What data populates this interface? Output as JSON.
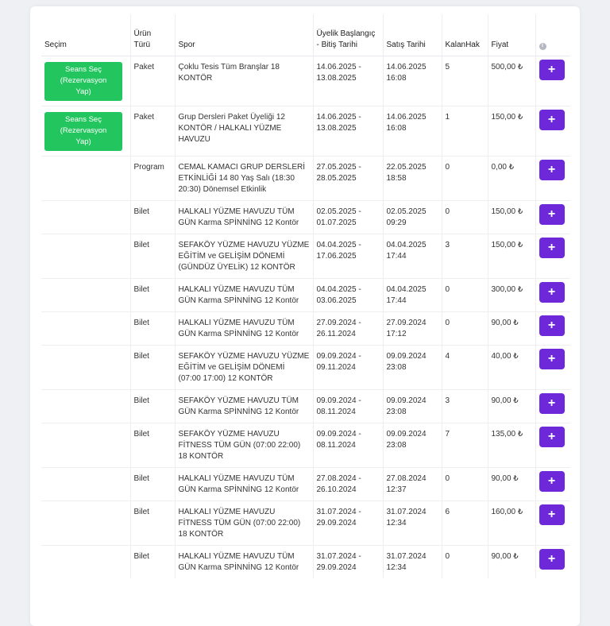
{
  "table": {
    "headers": {
      "secim": "Seçim",
      "urun_turu": "Ürün\nTürü",
      "spor": "Spor",
      "uyelik": "Üyelik Başlangıç\n- Bitiş Tarihi",
      "satis": "Satış Tarihi",
      "kalan": "KalanHak",
      "fiyat": "Fiyat",
      "info_icon": "info-icon"
    },
    "session_button_label": "Seans Seç\n(Rezervasyon\nYap)",
    "add_button_label": "+",
    "rows": [
      {
        "type": "Paket",
        "sport": "Çoklu Tesis Tüm Branşlar 18 KONTÖR",
        "membership": "14.06.2025 -\n13.08.2025",
        "sale": "14.06.2025\n16:08",
        "remaining": "5",
        "price": "500,00 ₺"
      },
      {
        "type": "Paket",
        "sport": "Grup Dersleri Paket Üyeliği 12 KONTÖR / HALKALI YÜZME HAVUZU",
        "membership": "14.06.2025 -\n13.08.2025",
        "sale": "14.06.2025\n16:08",
        "remaining": "1",
        "price": "150,00 ₺"
      },
      {
        "type": "Program",
        "sport": "CEMAL KAMACI GRUP DERSLERİ ETKİNLİĞİ 14 80 Yaş Salı (18:30 20:30) Dönemsel Etkinlik",
        "membership": "27.05.2025 -\n28.05.2025",
        "sale": "22.05.2025\n18:58",
        "remaining": "0",
        "price": "0,00 ₺"
      },
      {
        "type": "Bilet",
        "sport": "HALKALI YÜZME HAVUZU TÜM GÜN Karma SPİNNİNG 12 Kontör",
        "membership": "02.05.2025 -\n01.07.2025",
        "sale": "02.05.2025\n09:29",
        "remaining": "0",
        "price": "150,00 ₺"
      },
      {
        "type": "Bilet",
        "sport": "SEFAKÖY YÜZME HAVUZU YÜZME EĞİTİM ve GELİŞİM DÖNEMİ (GÜNDÜZ ÜYELİK) 12 KONTÖR",
        "membership": "04.04.2025 -\n17.06.2025",
        "sale": "04.04.2025\n17:44",
        "remaining": "3",
        "price": "150,00 ₺"
      },
      {
        "type": "Bilet",
        "sport": "HALKALI YÜZME HAVUZU TÜM GÜN Karma SPİNNİNG 12 Kontör",
        "membership": "04.04.2025 -\n03.06.2025",
        "sale": "04.04.2025\n17:44",
        "remaining": "0",
        "price": "300,00 ₺"
      },
      {
        "type": "Bilet",
        "sport": "HALKALI YÜZME HAVUZU TÜM GÜN Karma SPİNNİNG 12 Kontör",
        "membership": "27.09.2024 -\n26.11.2024",
        "sale": "27.09.2024\n17:12",
        "remaining": "0",
        "price": "90,00 ₺"
      },
      {
        "type": "Bilet",
        "sport": "SEFAKÖY YÜZME HAVUZU YÜZME EĞİTİM ve GELİŞİM DÖNEMİ (07:00 17:00) 12 KONTÖR",
        "membership": "09.09.2024 -\n09.11.2024",
        "sale": "09.09.2024\n23:08",
        "remaining": "4",
        "price": "40,00 ₺"
      },
      {
        "type": "Bilet",
        "sport": "SEFAKÖY YÜZME HAVUZU TÜM GÜN Karma SPİNNİNG 12 Kontör",
        "membership": "09.09.2024 -\n08.11.2024",
        "sale": "09.09.2024\n23:08",
        "remaining": "3",
        "price": "90,00 ₺"
      },
      {
        "type": "Bilet",
        "sport": "SEFAKÖY YÜZME HAVUZU FİTNESS TÜM GÜN (07:00 22:00) 18 KONTÖR",
        "membership": "09.09.2024 -\n08.11.2024",
        "sale": "09.09.2024\n23:08",
        "remaining": "7",
        "price": "135,00 ₺"
      },
      {
        "type": "Bilet",
        "sport": "HALKALI YÜZME HAVUZU TÜM GÜN Karma SPİNNİNG 12 Kontör",
        "membership": "27.08.2024 -\n26.10.2024",
        "sale": "27.08.2024\n12:37",
        "remaining": "0",
        "price": "90,00 ₺"
      },
      {
        "type": "Bilet",
        "sport": "HALKALI YÜZME HAVUZU FİTNESS TÜM GÜN (07:00 22:00) 18 KONTÖR",
        "membership": "31.07.2024 -\n29.09.2024",
        "sale": "31.07.2024\n12:34",
        "remaining": "6",
        "price": "160,00 ₺"
      },
      {
        "type": "Bilet",
        "sport": "HALKALI YÜZME HAVUZU TÜM GÜN Karma SPİNNİNG 12 Kontör",
        "membership": "31.07.2024 -\n29.09.2024",
        "sale": "31.07.2024\n12:34",
        "remaining": "0",
        "price": "90,00 ₺"
      }
    ]
  }
}
